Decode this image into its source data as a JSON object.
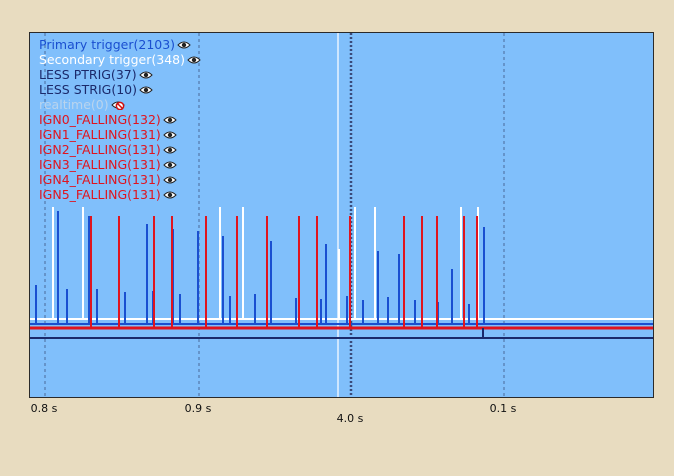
{
  "colors": {
    "background": "#e8dcc0",
    "plot_bg": "#80bffb",
    "primary": "#1a4fd0",
    "secondary": "#ffffff",
    "less_ptrig": "#1b2a6b",
    "less_strig": "#1b2a6b",
    "realtime": "#b9d4ee",
    "ign": "#e0141e",
    "cursor": "#e8f4ff",
    "grid": "#4a6a9a"
  },
  "legend": [
    {
      "label": "Primary trigger(2103)",
      "color": "#1a4fd0",
      "icon": "eye-icon",
      "visible": true
    },
    {
      "label": "Secondary trigger(348)",
      "color": "#ffffff",
      "icon": "eye-icon",
      "visible": true
    },
    {
      "label": "LESS PTRIG(37)",
      "color": "#1b2a6b",
      "icon": "eye-icon",
      "visible": true
    },
    {
      "label": "LESS STRIG(10)",
      "color": "#1b2a6b",
      "icon": "eye-icon",
      "visible": true
    },
    {
      "label": "realtime(0)",
      "color": "#b9d4ee",
      "icon": "eye-hidden-icon",
      "visible": false
    },
    {
      "label": "IGN0_FALLING(132)",
      "color": "#e0141e",
      "icon": "eye-icon",
      "visible": true
    },
    {
      "label": "IGN1_FALLING(131)",
      "color": "#e0141e",
      "icon": "eye-icon",
      "visible": true
    },
    {
      "label": "IGN2_FALLING(131)",
      "color": "#e0141e",
      "icon": "eye-icon",
      "visible": true
    },
    {
      "label": "IGN3_FALLING(131)",
      "color": "#e0141e",
      "icon": "eye-icon",
      "visible": true
    },
    {
      "label": "IGN4_FALLING(131)",
      "color": "#e0141e",
      "icon": "eye-icon",
      "visible": true
    },
    {
      "label": "IGN5_FALLING(131)",
      "color": "#e0141e",
      "icon": "eye-icon",
      "visible": true
    }
  ],
  "axis": {
    "tick_labels": [
      "0.8 s",
      "0.9 s",
      "0.1 s"
    ],
    "cursor_label": "4.0 s"
  }
}
